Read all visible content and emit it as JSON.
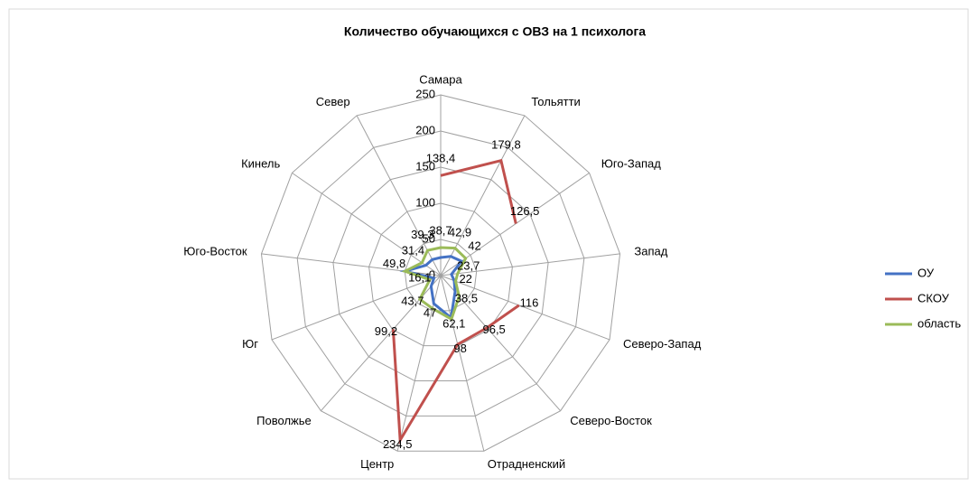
{
  "chart_data": {
    "type": "radar",
    "title": "Количество обучающихся с ОВЗ на 1 психолога",
    "categories": [
      "Самара",
      "Тольятти",
      "Юго-Запад",
      "Запад",
      "Северо-Запад",
      "Северо-Восток",
      "Отрадненский",
      "Центр",
      "Поволжье",
      "Юг",
      "Юго-Восток",
      "Кинель",
      "Север"
    ],
    "series": [
      {
        "name": "ОУ",
        "color": "#4472c4",
        "values": [
          25,
          30,
          35,
          15,
          20,
          30,
          60,
          40,
          20,
          10,
          50,
          25,
          25
        ]
      },
      {
        "name": "СКОУ",
        "color": "#c0504d",
        "values": [
          138.4,
          179.8,
          126.5,
          null,
          116,
          96.5,
          98,
          234.5,
          99.2,
          null,
          null,
          null,
          null
        ],
        "value_labels": [
          "138,4",
          "179,8",
          "126,5",
          null,
          "116",
          "96,5",
          "98",
          "234,5",
          "99,2",
          null,
          null,
          null,
          null
        ]
      },
      {
        "name": "область",
        "color": "#9bbb59",
        "values": [
          38.7,
          42.9,
          42,
          23.7,
          22,
          38.5,
          62.1,
          47,
          43.7,
          16.1,
          49.8,
          31.4,
          39.3
        ],
        "value_labels": [
          "38,7",
          "42,9",
          "42",
          "23,7",
          "22",
          "38,5",
          "62,1",
          "47",
          "43,7",
          "16,1",
          "49,8",
          "31,4",
          "39,3"
        ]
      }
    ],
    "ylim": [
      0,
      250
    ],
    "yticks": [
      0,
      50,
      100,
      150,
      200,
      250
    ],
    "grid": true,
    "legend": "right"
  }
}
